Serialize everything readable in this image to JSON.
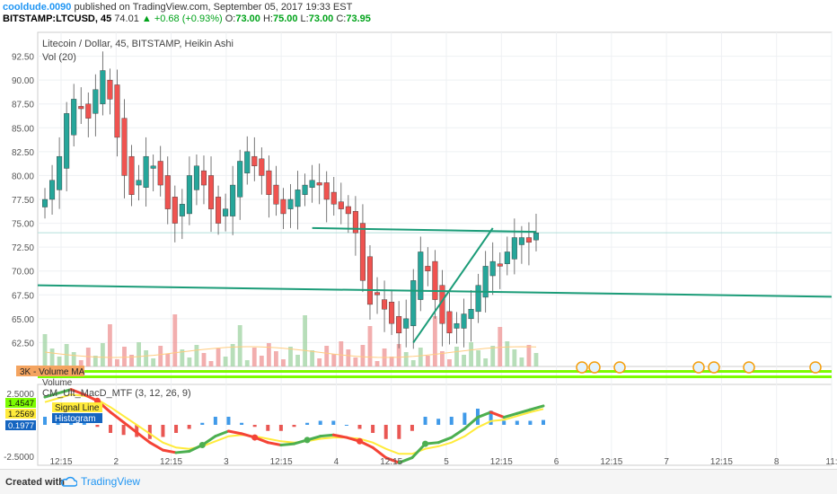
{
  "header": {
    "author": "cooldude.0090",
    "published": "published on TradingView.com, September 05, 2017 19:33 EST",
    "symbol": "BITSTAMP:LTCUSD, 45",
    "last": "74.01",
    "change": "+0.68 (+0.93%)",
    "o_label": "O:",
    "o_val": "73.00",
    "h_label": "H:",
    "h_val": "75.00",
    "l_label": "L:",
    "l_val": "73.00",
    "c_label": "C:",
    "c_val": "73.95"
  },
  "legend": {
    "title": "Litecoin / Dollar, 45, BITSTAMP, Heikin Ashi",
    "vol": "Vol (20)",
    "volume_ma": "3K - Volume MA",
    "volume": "Volume",
    "macd_title": "CM_Ult_MacD_MTF (3, 12, 26, 9)",
    "signal_label": "Signal Line",
    "hist_label": "Histogram"
  },
  "footer": {
    "created_with": "Created with",
    "brand": "TradingView"
  },
  "colors": {
    "up": "#26a69a",
    "down": "#ef5350",
    "trend": "#1b9c78",
    "vol_up": "#a5d6a7",
    "vol_down": "#ef9a9a",
    "ma": "#ffcc80",
    "macd_up": "#4caf50",
    "macd_down": "#f44336",
    "signal": "#ffeb3b",
    "hist_up": "#1e88e5",
    "hist_down": "#e53935"
  },
  "chart_data": [
    {
      "type": "candlestick",
      "title": "Litecoin / Dollar, 45, BITSTAMP, Heikin Ashi",
      "ylim": [
        60,
        95
      ],
      "yticks": [
        "92.50",
        "90.00",
        "87.50",
        "85.00",
        "82.50",
        "80.00",
        "77.50",
        "75.00",
        "72.50",
        "70.00",
        "67.50",
        "65.00",
        "62.50"
      ],
      "xticks": [
        "12:15",
        "2",
        "12:15",
        "3",
        "12:15",
        "4",
        "12:15",
        "5",
        "12:15",
        "6",
        "12:15",
        "7",
        "12:15",
        "8",
        "11:"
      ],
      "price_line": 74.01,
      "series_close": [
        77.5,
        79.5,
        82,
        86.5,
        88,
        87,
        86,
        89,
        91,
        88,
        84,
        80,
        78,
        79.5,
        82,
        81,
        79,
        76.5,
        75,
        77,
        80,
        81,
        79,
        76.5,
        75,
        76.5,
        79,
        81.5,
        82.5,
        81,
        80,
        78,
        77,
        76,
        77.5,
        78.5,
        79,
        79.5,
        79,
        77.5,
        77,
        76.5,
        76,
        74,
        69,
        66.5,
        67.5,
        66,
        64.5,
        63.5,
        65,
        69,
        72,
        70,
        67,
        64.5,
        63.5,
        64.5,
        65.5,
        66,
        68.5,
        70.5,
        71,
        70.5,
        72,
        73.5,
        73.5,
        73,
        74
      ],
      "trendlines": [
        {
          "from": [
            0,
            68.5
          ],
          "to": [
            100,
            67.3
          ]
        },
        {
          "from": [
            44,
            74.5
          ],
          "to": [
            81,
            74.1
          ]
        },
        {
          "from": [
            60.5,
            62.5
          ],
          "to": [
            73.5,
            74.5
          ]
        }
      ]
    },
    {
      "type": "bar",
      "title": "Volume",
      "label": "3K - Volume MA"
    },
    {
      "type": "line",
      "title": "CM_Ult_MacD_MTF (3, 12, 26, 9)",
      "ylim": [
        -3.2,
        3.2
      ],
      "yticks": [
        "2.5000",
        "-2.5000"
      ],
      "values_labels": [
        "1.4547",
        "1.2569",
        "0.1977"
      ],
      "series": [
        {
          "name": "MACD",
          "values": [
            2.2,
            2.5,
            2.8,
            2.4,
            1.9,
            1.0,
            0.2,
            -0.6,
            -1.4,
            -2.0,
            -2.2,
            -2.1,
            -1.6,
            -0.9,
            -0.5,
            -0.7,
            -1.0,
            -1.4,
            -1.6,
            -1.5,
            -1.2,
            -0.9,
            -0.8,
            -1.0,
            -1.3,
            -1.8,
            -2.6,
            -3.0,
            -2.6,
            -1.5,
            -1.4,
            -1.0,
            -0.3,
            0.6,
            1.0,
            0.6,
            0.9,
            1.2,
            1.5
          ]
        },
        {
          "name": "Signal Line",
          "values": [
            1.8,
            2.1,
            2.4,
            2.3,
            2.0,
            1.4,
            0.7,
            0.0,
            -0.7,
            -1.4,
            -1.8,
            -1.9,
            -1.7,
            -1.3,
            -0.9,
            -0.8,
            -0.9,
            -1.1,
            -1.3,
            -1.4,
            -1.3,
            -1.1,
            -1.0,
            -1.0,
            -1.1,
            -1.4,
            -1.9,
            -2.3,
            -2.3,
            -1.9,
            -1.7,
            -1.4,
            -0.9,
            -0.2,
            0.3,
            0.4,
            0.7,
            1.0,
            1.26
          ]
        }
      ]
    }
  ]
}
